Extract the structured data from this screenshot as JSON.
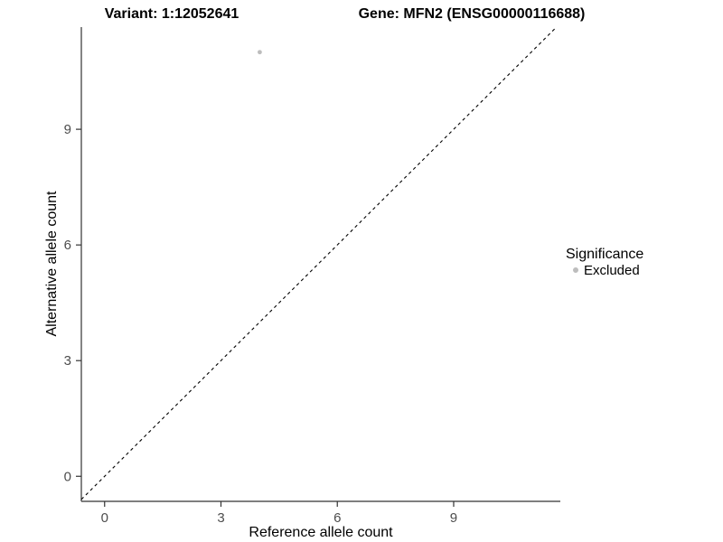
{
  "chart_data": {
    "type": "scatter",
    "title_left": "Variant: 1:12052641",
    "title_right": "Gene: MFN2 (ENSG00000116688)",
    "xlabel": "Reference allele count",
    "ylabel": "Alternative allele count",
    "xlim": [
      -0.6,
      11.75
    ],
    "ylim": [
      -0.65,
      11.65
    ],
    "xticks": [
      0,
      3,
      6,
      9
    ],
    "yticks": [
      0,
      3,
      6,
      9
    ],
    "grid": false,
    "background": "#ffffff",
    "axis_color": "#333333",
    "tick_label_color": "#4d4d4d",
    "reference_line": {
      "type": "identity",
      "style": "dashed",
      "color": "#000000"
    },
    "series": [
      {
        "name": "Excluded",
        "color": "#bdbdbd",
        "points": [
          {
            "x": 4,
            "y": 11
          }
        ]
      }
    ],
    "legend": {
      "position": "right",
      "title": "Significance",
      "entries": [
        {
          "label": "Excluded",
          "color": "#bdbdbd"
        }
      ]
    }
  }
}
